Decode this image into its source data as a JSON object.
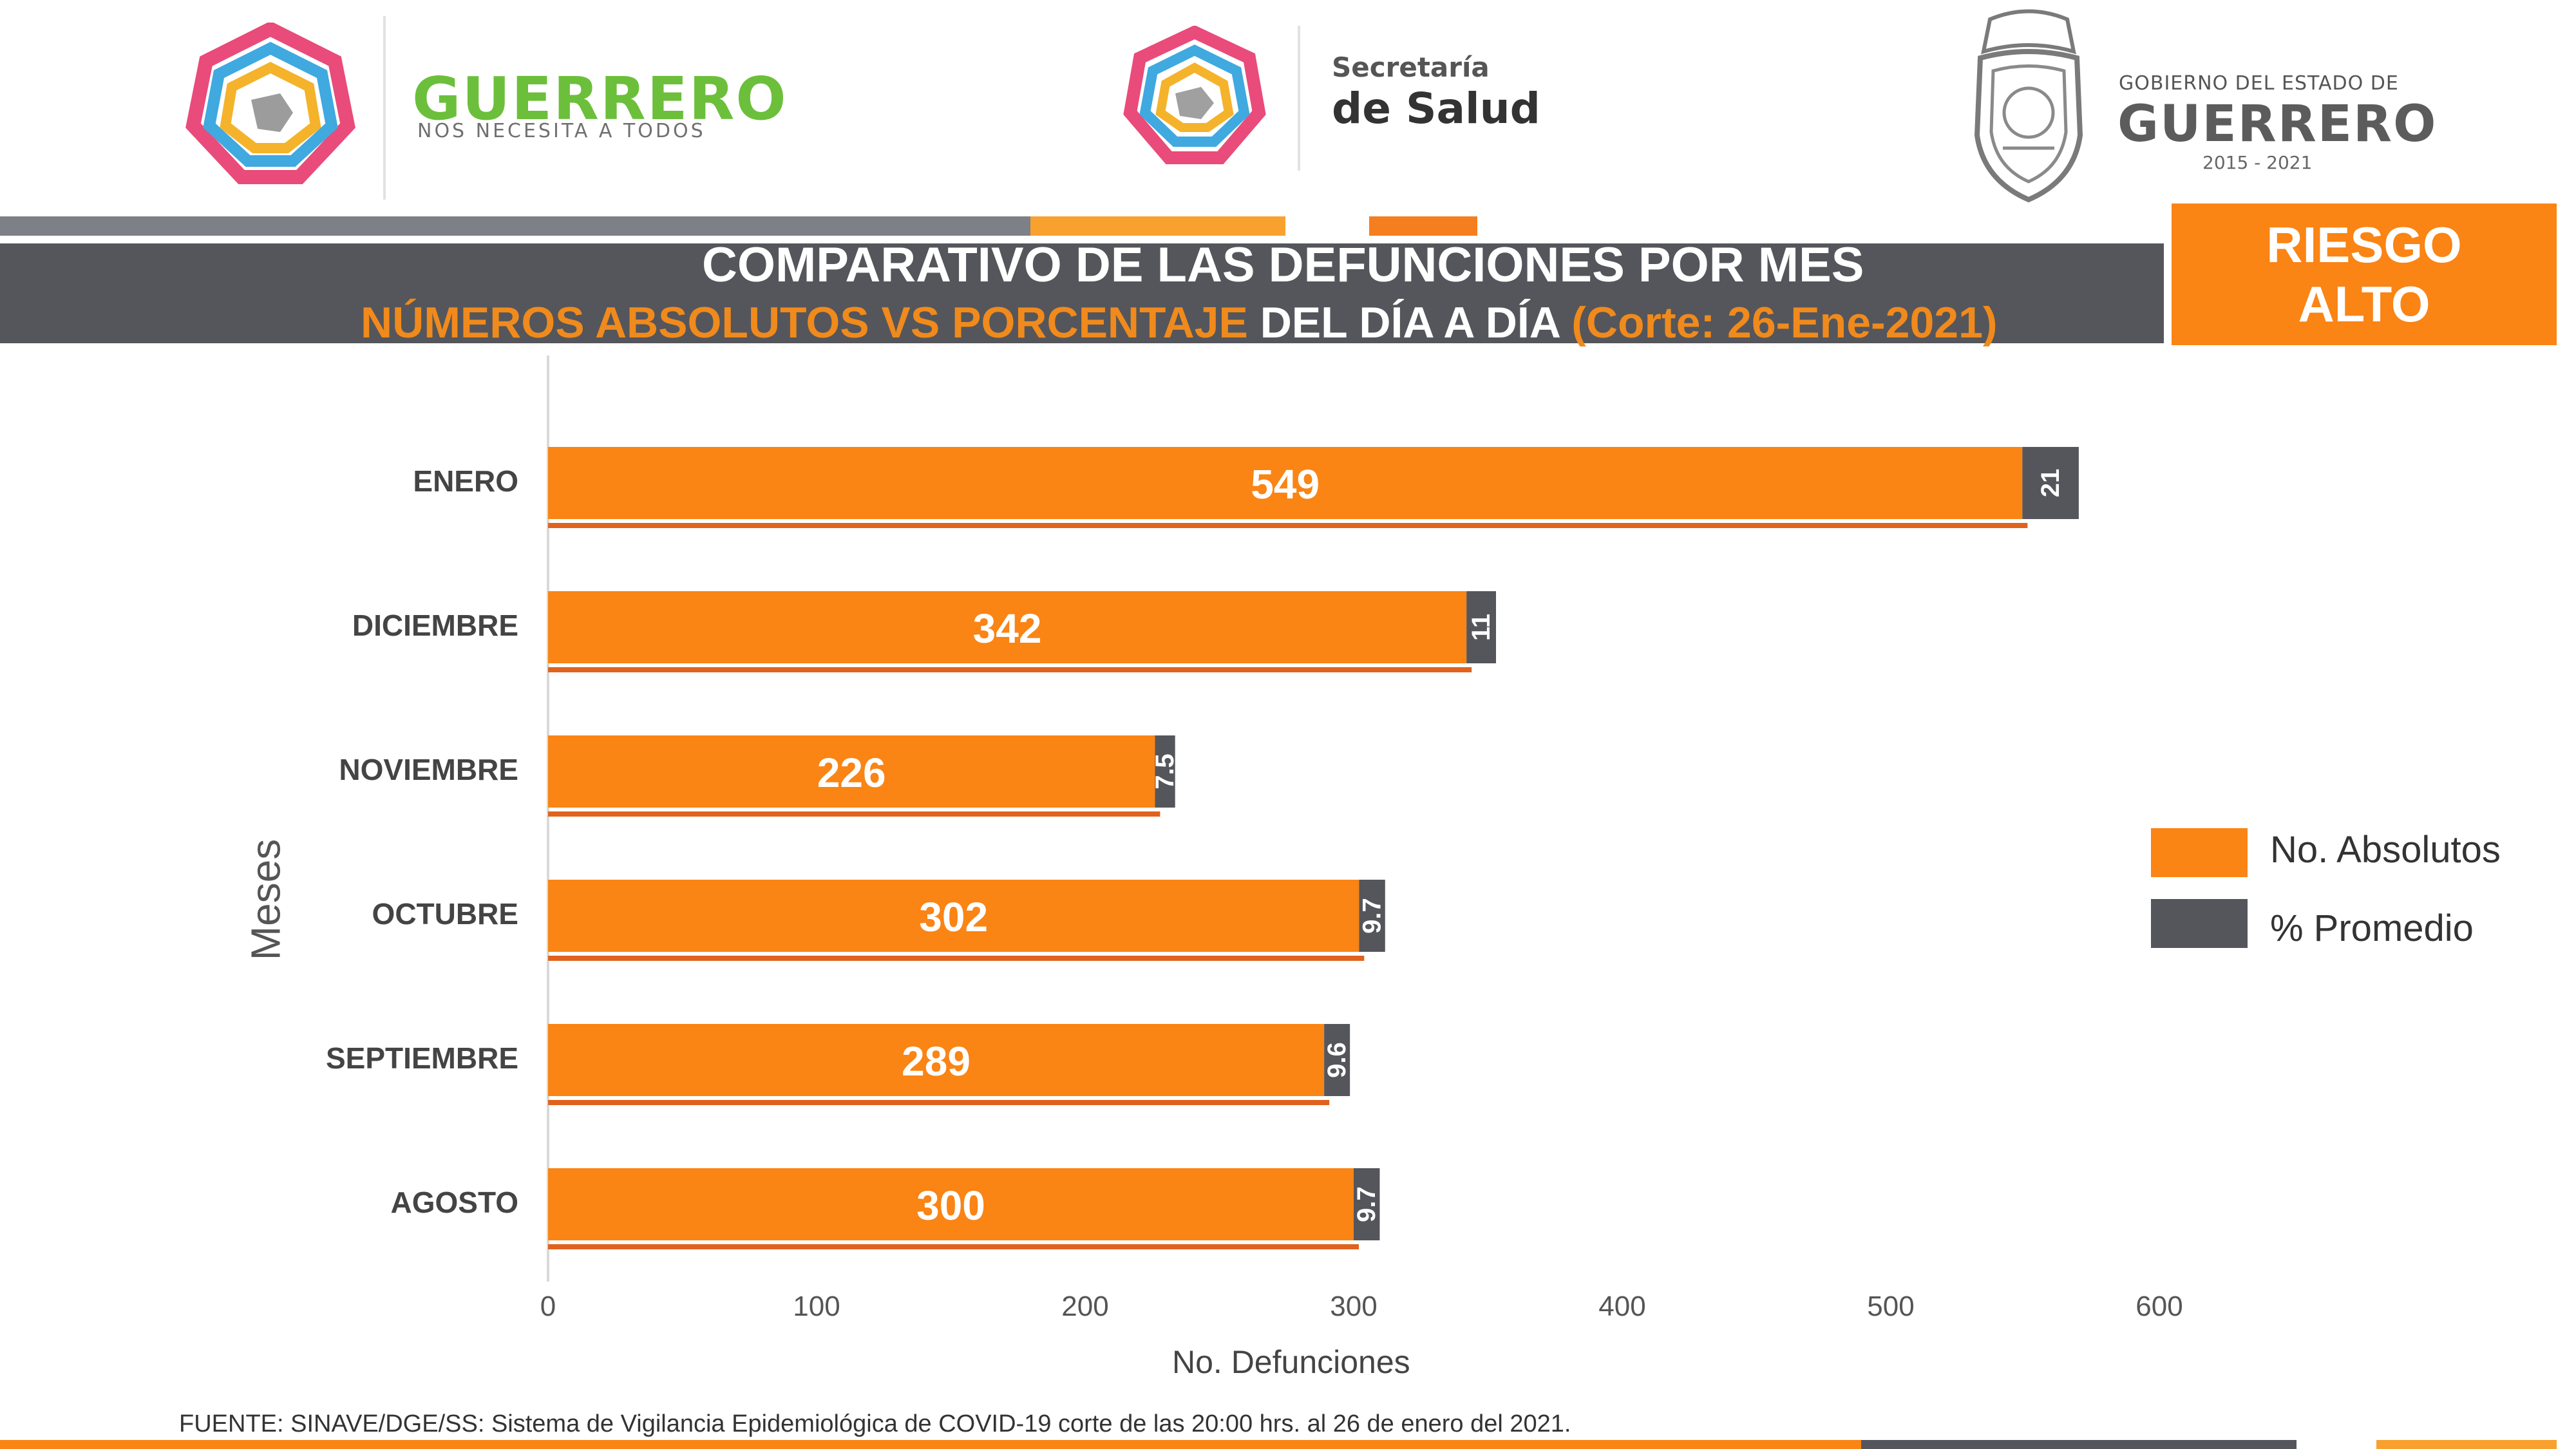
{
  "header": {
    "left_logo_title": "GUERRERO",
    "left_logo_tagline": "NOS NECESITA A TODOS",
    "center_logo_line1": "Secretaría",
    "center_logo_line2": "de Salud",
    "right_logo_line1": "GOBIERNO DEL ESTADO DE",
    "right_logo_line2": "GUERRERO",
    "right_logo_line3": "2015 - 2021"
  },
  "title": {
    "line1": "COMPARATIVO DE LAS DEFUNCIONES POR MES",
    "line2_orange": "NÚMEROS ABSOLUTOS VS PORCENTAJE",
    "line2_white": " DEL DÍA A DÍA ",
    "line2_cutoff": "(Corte: 26-Ene-2021)"
  },
  "risk_badge": {
    "line1": "RIESGO",
    "line2": "ALTO"
  },
  "chart_data": {
    "type": "bar",
    "orientation": "horizontal",
    "stacked": true,
    "categories": [
      "ENERO",
      "DICIEMBRE",
      "NOVIEMBRE",
      "OCTUBRE",
      "SEPTIEMBRE",
      "AGOSTO"
    ],
    "series": [
      {
        "name": "No. Absolutos",
        "values": [
          549,
          342,
          226,
          302,
          289,
          300
        ],
        "color": "#fa8414"
      },
      {
        "name": "% Promedio",
        "values": [
          21,
          11,
          7.5,
          9.7,
          9.6,
          9.7
        ],
        "color": "#54565b"
      }
    ],
    "xlabel": "No. Defunciones",
    "ylabel": "Meses",
    "xlim": [
      0,
      600
    ],
    "x_ticks": [
      "0",
      "100",
      "200",
      "300",
      "400",
      "500",
      "600"
    ],
    "legend_position": "right",
    "grid": false
  },
  "footer": {
    "source": "FUENTE: SINAVE/DGE/SS: Sistema de Vigilancia Epidemiológica de COVID-19 corte de las 20:00 hrs. al 26 de  enero del 2021."
  },
  "colors": {
    "orange": "#fa8414",
    "dark_gray": "#54565b",
    "bar_underline": "#e0621e",
    "light_orange": "#f9a12e",
    "brand_green": "#6cbf3b"
  }
}
